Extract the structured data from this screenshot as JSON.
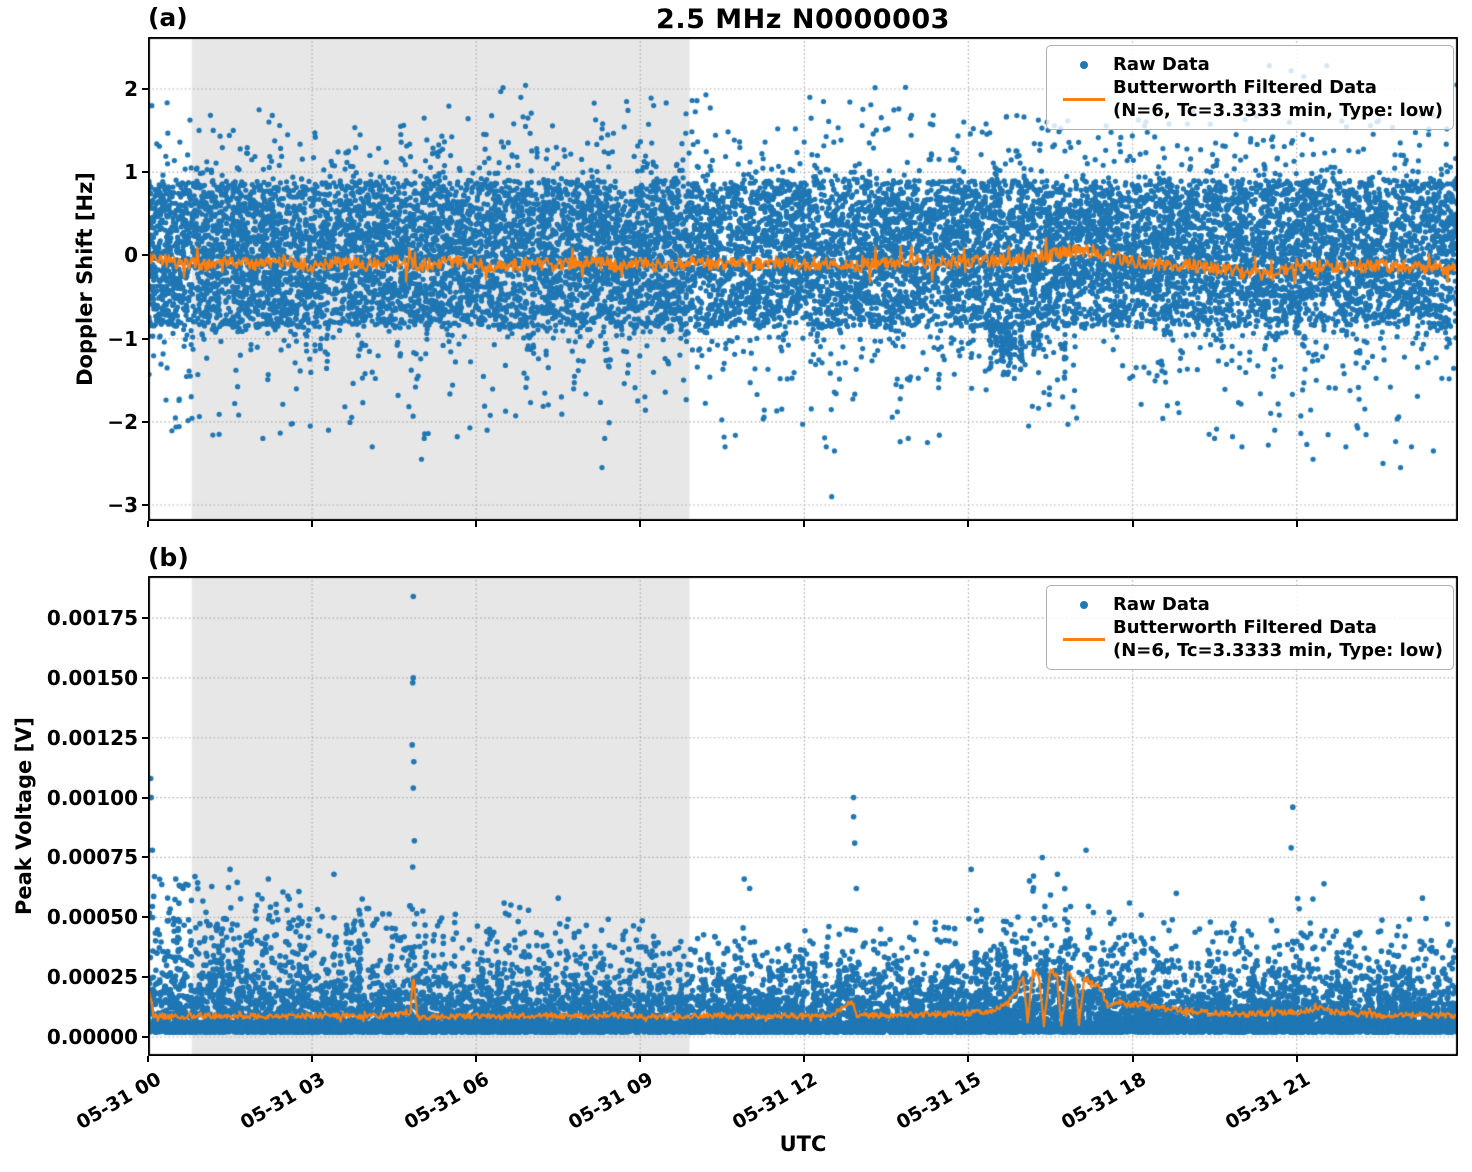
{
  "title": "2.5 MHz N0000003",
  "legend": {
    "raw_label": "Raw Data",
    "filtered_label_line1": "Butterworth Filtered Data",
    "filtered_label_line2": "(N=6, Tc=3.3333 min, Type: low)"
  },
  "colors": {
    "raw": "#1f77b4",
    "filtered": "#ff7f0e",
    "shade": "#e7e7e7",
    "grid": "#ababab",
    "spine": "#000000"
  },
  "chart_data": {
    "type": "scatter",
    "xlabel": "UTC",
    "x_axis_hours": [
      0,
      23.95
    ],
    "xticks": [
      {
        "hour": 0,
        "label": "05-31 00"
      },
      {
        "hour": 3,
        "label": "05-31 03"
      },
      {
        "hour": 6,
        "label": "05-31 06"
      },
      {
        "hour": 9,
        "label": "05-31 09"
      },
      {
        "hour": 12,
        "label": "05-31 12"
      },
      {
        "hour": 15,
        "label": "05-31 15"
      },
      {
        "hour": 18,
        "label": "05-31 18"
      },
      {
        "hour": 21,
        "label": "05-31 21"
      }
    ],
    "shaded_region_hours": [
      0.8,
      9.9
    ],
    "panels": [
      {
        "tag": "(a)",
        "ylabel": "Doppler Shift [Hz]",
        "ylim": [
          -3.192,
          2.625
        ],
        "yticks": [
          {
            "v": 2,
            "label": "2"
          },
          {
            "v": 1,
            "label": "1"
          },
          {
            "v": 0,
            "label": "0"
          },
          {
            "v": -1,
            "label": "−1"
          },
          {
            "v": -2,
            "label": "−2"
          },
          {
            "v": -3,
            "label": "−3"
          }
        ],
        "scatter": {
          "n_points": 15000,
          "core": {
            "center": 0.02,
            "half_width": 0.88,
            "frac": 0.6
          },
          "mid": {
            "std": 0.55,
            "frac": 0.28
          },
          "tail": {
            "std": 0.95,
            "frac": 0.12
          },
          "upper_mult": [
            1.0,
            0.98,
            1.0,
            0.98,
            0.96,
            1.0,
            1.02,
            1.0,
            1.0,
            1.02,
            1.0,
            1.0,
            1.0,
            1.02,
            0.98,
            0.95,
            0.95,
            0.88,
            0.98,
            1.0,
            1.05,
            1.05,
            1.0,
            1.0
          ],
          "lower_mult": [
            1.05,
            1.0,
            1.02,
            1.0,
            1.05,
            1.05,
            1.0,
            1.0,
            1.05,
            1.0,
            1.0,
            1.0,
            1.05,
            1.05,
            1.0,
            1.12,
            1.15,
            0.78,
            1.0,
            1.08,
            1.12,
            1.18,
            1.15,
            1.1
          ],
          "clip_upper": [
            1.85,
            1.75,
            1.8,
            1.72,
            1.68,
            2.0,
            2.05,
            1.8,
            1.9,
            1.95,
            1.95,
            1.9,
            1.92,
            2.05,
            1.78,
            1.72,
            1.75,
            1.62,
            1.85,
            1.78,
            2.32,
            2.32,
            1.85,
            2.1
          ],
          "clip_lower": [
            -2.25,
            -2.2,
            -2.25,
            -2.15,
            -2.35,
            -2.5,
            -2.15,
            -2.1,
            -2.6,
            -2.05,
            -2.35,
            -2.05,
            -2.92,
            -2.25,
            -2.3,
            -1.95,
            -2.1,
            -1.7,
            -2.15,
            -2.25,
            -2.35,
            -2.5,
            -2.6,
            -2.45
          ],
          "hang_columns": {
            "t_min": 15.3,
            "t_max": 16.9,
            "count": 13,
            "depth_min": -1.1,
            "depth_max": -1.6,
            "points_per_column": 11
          },
          "outliers": [
            [
              0.07,
              1.8
            ],
            [
              6.45,
              1.97
            ],
            [
              10.2,
              1.93
            ],
            [
              12.1,
              1.9
            ],
            [
              12.35,
              1.85
            ],
            [
              13.85,
              2.02
            ],
            [
              20.5,
              2.28
            ],
            [
              20.9,
              2.22
            ],
            [
              21.55,
              2.28
            ],
            [
              23.93,
              2.05
            ],
            [
              8.75,
              1.85
            ],
            [
              1.3,
              -2.15
            ],
            [
              2.1,
              -2.2
            ],
            [
              3.3,
              -2.1
            ],
            [
              4.1,
              -2.3
            ],
            [
              5.0,
              -2.45
            ],
            [
              5.05,
              -2.2
            ],
            [
              6.2,
              -2.1
            ],
            [
              8.3,
              -2.55
            ],
            [
              8.35,
              -2.2
            ],
            [
              10.55,
              -2.3
            ],
            [
              12.4,
              -2.3
            ],
            [
              12.5,
              -2.9
            ],
            [
              12.55,
              -2.35
            ],
            [
              13.9,
              -2.2
            ],
            [
              14.25,
              -2.25
            ],
            [
              16.1,
              -2.05
            ],
            [
              19.4,
              -2.15
            ],
            [
              19.5,
              -2.2
            ],
            [
              20.0,
              -2.3
            ],
            [
              20.6,
              -2.1
            ],
            [
              21.3,
              -2.45
            ],
            [
              21.9,
              -2.3
            ],
            [
              22.9,
              -2.55
            ],
            [
              23.1,
              -2.3
            ],
            [
              23.5,
              -2.35
            ]
          ]
        },
        "filtered_line": {
          "noise_amp": 0.08,
          "spike_prob": 0.05,
          "spike_gain": 2.8,
          "waypoints": [
            [
              0,
              -0.02
            ],
            [
              0.5,
              -0.08
            ],
            [
              1,
              -0.12
            ],
            [
              1.5,
              -0.06
            ],
            [
              2,
              -0.11
            ],
            [
              2.5,
              -0.07
            ],
            [
              3,
              -0.13
            ],
            [
              3.5,
              -0.08
            ],
            [
              4,
              -0.11
            ],
            [
              4.5,
              -0.07
            ],
            [
              5,
              -0.12
            ],
            [
              5.5,
              -0.08
            ],
            [
              6,
              -0.1
            ],
            [
              6.5,
              -0.13
            ],
            [
              7,
              -0.09
            ],
            [
              7.5,
              -0.12
            ],
            [
              8,
              -0.09
            ],
            [
              8.5,
              -0.12
            ],
            [
              9,
              -0.1
            ],
            [
              9.5,
              -0.13
            ],
            [
              10,
              -0.07
            ],
            [
              10.5,
              -0.1
            ],
            [
              11,
              -0.12
            ],
            [
              11.5,
              -0.09
            ],
            [
              12,
              -0.11
            ],
            [
              12.5,
              -0.08
            ],
            [
              13,
              -0.12
            ],
            [
              13.5,
              -0.1
            ],
            [
              14,
              -0.07
            ],
            [
              14.5,
              -0.09
            ],
            [
              15,
              -0.06
            ],
            [
              15.5,
              -0.07
            ],
            [
              16,
              -0.04
            ],
            [
              16.5,
              0.0
            ],
            [
              16.9,
              0.06
            ],
            [
              17.2,
              0.05
            ],
            [
              17.5,
              0.0
            ],
            [
              18,
              -0.07
            ],
            [
              18.5,
              -0.1
            ],
            [
              19,
              -0.12
            ],
            [
              19.5,
              -0.16
            ],
            [
              20,
              -0.2
            ],
            [
              20.5,
              -0.22
            ],
            [
              21,
              -0.16
            ],
            [
              21.5,
              -0.13
            ],
            [
              22,
              -0.14
            ],
            [
              22.5,
              -0.12
            ],
            [
              23,
              -0.16
            ],
            [
              23.5,
              -0.14
            ],
            [
              23.95,
              -0.18
            ]
          ]
        }
      },
      {
        "tag": "(b)",
        "ylabel": "Peak Voltage [V]",
        "ylim": [
          -7.94e-05,
          0.0019256
        ],
        "yticks": [
          {
            "v": 0.00175,
            "label": "0.00175"
          },
          {
            "v": 0.0015,
            "label": "0.00150"
          },
          {
            "v": 0.00125,
            "label": "0.00125"
          },
          {
            "v": 0.001,
            "label": "0.00100"
          },
          {
            "v": 0.00075,
            "label": "0.00075"
          },
          {
            "v": 0.0005,
            "label": "0.00050"
          },
          {
            "v": 0.00025,
            "label": "0.00025"
          },
          {
            "v": 0.0,
            "label": "0.00000"
          }
        ],
        "scatter": {
          "n_points": 13000,
          "strip": {
            "min": 2e-05,
            "max": 6e-05,
            "frac": 0.45
          },
          "band": {
            "offset": 4e-05,
            "scale": 0.00011
          },
          "upper_env": [
            0.00068,
            0.00065,
            0.00062,
            0.00058,
            0.00055,
            0.00053,
            0.00056,
            0.00052,
            0.0005,
            0.00049,
            0.00047,
            0.00046,
            0.00048,
            0.00046,
            0.00049,
            0.00056,
            0.00068,
            0.00058,
            0.00052,
            0.0005,
            0.00049,
            0.00058,
            0.0005,
            0.00053
          ],
          "scale_mult": [
            1.6,
            1.5,
            1.35,
            1.25,
            1.12,
            1.0,
            1.05,
            1.0,
            1.0,
            0.95,
            0.9,
            0.9,
            0.95,
            0.9,
            0.95,
            1.15,
            1.35,
            1.1,
            0.95,
            0.9,
            0.92,
            1.05,
            0.92,
            0.98
          ],
          "bursts": {
            "count": 70,
            "points_min": 8,
            "points_max": 22,
            "y_top": 0.0003
          },
          "outliers": [
            [
              0.05,
              0.00108
            ],
            [
              0.06,
              0.001
            ],
            [
              0.08,
              0.00078
            ],
            [
              4.85,
              0.00184
            ],
            [
              4.85,
              0.0015
            ],
            [
              4.84,
              0.00148
            ],
            [
              4.83,
              0.00122
            ],
            [
              4.86,
              0.00115
            ],
            [
              4.85,
              0.00104
            ],
            [
              4.87,
              0.00082
            ],
            [
              4.84,
              0.00071
            ],
            [
              12.9,
              0.001
            ],
            [
              12.9,
              0.00092
            ],
            [
              12.92,
              0.00081
            ],
            [
              12.95,
              0.00062
            ],
            [
              20.93,
              0.00096
            ],
            [
              20.9,
              0.00079
            ],
            [
              16.35,
              0.00075
            ],
            [
              17.15,
              0.00078
            ],
            [
              15.05,
              0.0007
            ],
            [
              10.9,
              0.00066
            ],
            [
              11.0,
              0.00062
            ],
            [
              21.5,
              0.00064
            ],
            [
              23.3,
              0.00058
            ],
            [
              18.8,
              0.0006
            ],
            [
              7.5,
              0.00058
            ],
            [
              3.4,
              0.00068
            ],
            [
              1.5,
              0.0007
            ],
            [
              2.2,
              0.00066
            ]
          ]
        },
        "filtered_line": {
          "noise_amp": 1.2e-05,
          "spike_prob": 0.03,
          "spike_gain": 2.0,
          "waypoints": [
            [
              0,
              0.00022
            ],
            [
              0.1,
              9e-05
            ],
            [
              0.5,
              8.5e-05
            ],
            [
              1,
              9e-05
            ],
            [
              1.5,
              8.5e-05
            ],
            [
              2,
              9e-05
            ],
            [
              2.5,
              8.5e-05
            ],
            [
              3,
              9e-05
            ],
            [
              3.5,
              8.8e-05
            ],
            [
              4,
              8.5e-05
            ],
            [
              4.55,
              9e-05
            ],
            [
              4.8,
              0.0001
            ],
            [
              4.85,
              0.00027
            ],
            [
              4.92,
              8e-05
            ],
            [
              5.5,
              8.5e-05
            ],
            [
              6,
              8.8e-05
            ],
            [
              6.5,
              8.5e-05
            ],
            [
              7,
              9e-05
            ],
            [
              7.5,
              8.8e-05
            ],
            [
              8,
              8.5e-05
            ],
            [
              8.5,
              9e-05
            ],
            [
              9,
              8.8e-05
            ],
            [
              9.5,
              8.5e-05
            ],
            [
              10,
              9e-05
            ],
            [
              10.5,
              8.8e-05
            ],
            [
              11,
              8.5e-05
            ],
            [
              11.5,
              9e-05
            ],
            [
              12,
              8.8e-05
            ],
            [
              12.5,
              9e-05
            ],
            [
              12.88,
              0.00015
            ],
            [
              12.95,
              9e-05
            ],
            [
              13.5,
              9e-05
            ],
            [
              14,
              9.2e-05
            ],
            [
              14.5,
              9.5e-05
            ],
            [
              15,
              0.0001
            ],
            [
              15.4,
              0.00011
            ],
            [
              15.7,
              0.00014
            ],
            [
              15.9,
              0.0002
            ],
            [
              16.0,
              0.00026
            ],
            [
              16.08,
              6e-05
            ],
            [
              16.18,
              0.00028
            ],
            [
              16.3,
              0.00024
            ],
            [
              16.38,
              5e-05
            ],
            [
              16.5,
              0.00028
            ],
            [
              16.62,
              0.00025
            ],
            [
              16.7,
              5e-05
            ],
            [
              16.82,
              0.00027
            ],
            [
              16.95,
              0.00024
            ],
            [
              17.02,
              5e-05
            ],
            [
              17.12,
              0.00025
            ],
            [
              17.25,
              0.00023
            ],
            [
              17.4,
              0.00021
            ],
            [
              17.55,
              0.00013
            ],
            [
              17.7,
              0.00015
            ],
            [
              17.9,
              0.00013
            ],
            [
              18.2,
              0.00014
            ],
            [
              18.5,
              0.00012
            ],
            [
              19,
              0.00011
            ],
            [
              19.5,
              0.0001
            ],
            [
              20,
              9.5e-05
            ],
            [
              20.5,
              0.0001
            ],
            [
              21,
              0.000105
            ],
            [
              21.4,
              0.00012
            ],
            [
              21.8,
              0.0001
            ],
            [
              22.2,
              9.5e-05
            ],
            [
              22.6,
              9e-05
            ],
            [
              23,
              9.2e-05
            ],
            [
              23.5,
              9e-05
            ],
            [
              23.95,
              8.8e-05
            ]
          ]
        }
      }
    ]
  }
}
